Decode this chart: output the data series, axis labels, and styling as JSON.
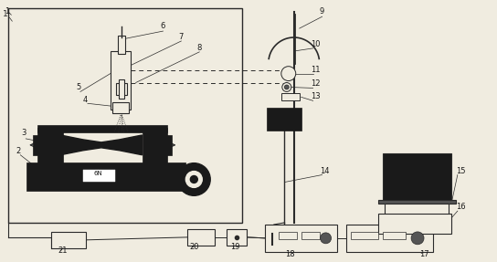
{
  "bg_color": "#f0ece0",
  "line_color": "#2a2a2a",
  "fill_dark": "#1a1a1a",
  "fill_mid": "#555555",
  "fill_light": "#aaaaaa",
  "label_color": "#1a1a1a",
  "fig_w": 5.44,
  "fig_h": 2.87,
  "dpi": 100
}
